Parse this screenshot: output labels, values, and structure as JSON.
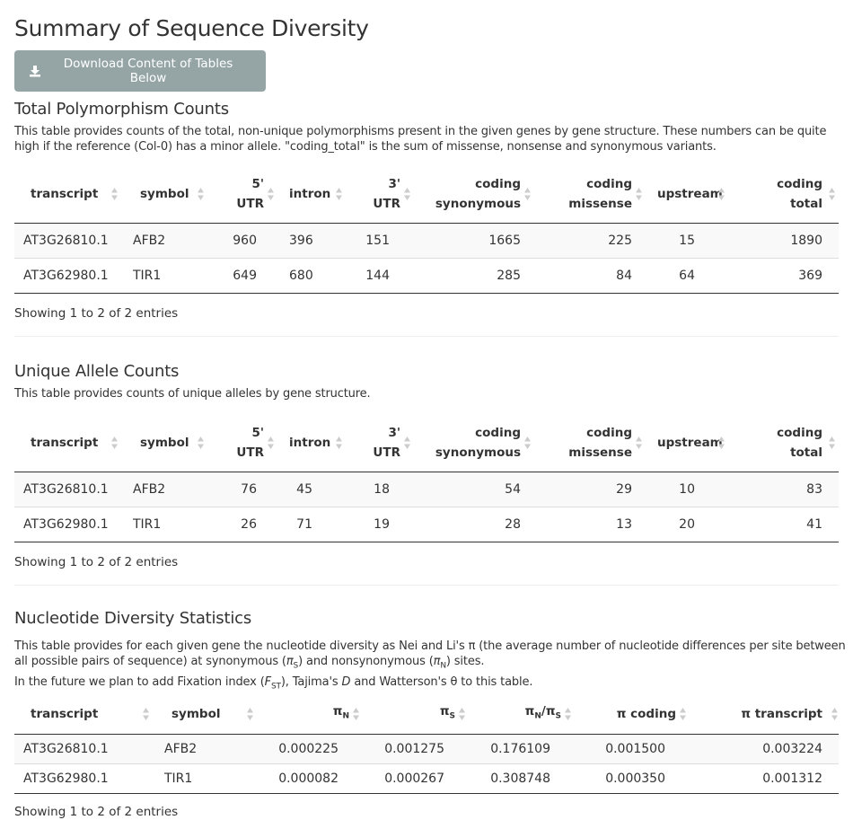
{
  "page": {
    "title": "Summary of Sequence Diversity",
    "download_label": "Download Content of Tables Below"
  },
  "colors": {
    "button_bg": "#95a5a6",
    "text": "#333333"
  },
  "icons": {
    "download": "download-icon",
    "sort": "sort-both-icon"
  },
  "total": {
    "title": "Total Polymorphism Counts",
    "desc": "This table provides counts of the total, non-unique polymorphisms present in the given genes by gene structure. These numbers can be quite high if the reference (Col-0) has a minor allele. \"coding_total\" is the sum of missense, nonsense and synonymous variants.",
    "headers": [
      {
        "l1": "transcript",
        "l2": ""
      },
      {
        "l1": "symbol",
        "l2": ""
      },
      {
        "l1": "5'",
        "l2": "UTR"
      },
      {
        "l1": "intron",
        "l2": ""
      },
      {
        "l1": "3'",
        "l2": "UTR"
      },
      {
        "l1": "coding",
        "l2": "synonymous"
      },
      {
        "l1": "coding",
        "l2": "missense"
      },
      {
        "l1": "upstream",
        "l2": ""
      },
      {
        "l1": "coding",
        "l2": "total"
      }
    ],
    "rows": [
      [
        "AT3G26810.1",
        "AFB2",
        "960",
        "396",
        "151",
        "1665",
        "225",
        "15",
        "1890"
      ],
      [
        "AT3G62980.1",
        "TIR1",
        "649",
        "680",
        "144",
        "285",
        "84",
        "64",
        "369"
      ]
    ],
    "info": "Showing 1 to 2 of 2 entries"
  },
  "unique": {
    "title": "Unique Allele Counts",
    "desc": "This table provides counts of unique alleles by gene structure.",
    "headers": [
      {
        "l1": "transcript",
        "l2": ""
      },
      {
        "l1": "symbol",
        "l2": ""
      },
      {
        "l1": "5'",
        "l2": "UTR"
      },
      {
        "l1": "intron",
        "l2": ""
      },
      {
        "l1": "3'",
        "l2": "UTR"
      },
      {
        "l1": "coding",
        "l2": "synonymous"
      },
      {
        "l1": "coding",
        "l2": "missense"
      },
      {
        "l1": "upstream",
        "l2": ""
      },
      {
        "l1": "coding",
        "l2": "total"
      }
    ],
    "rows": [
      [
        "AT3G26810.1",
        "AFB2",
        "76",
        "45",
        "18",
        "54",
        "29",
        "10",
        "83"
      ],
      [
        "AT3G62980.1",
        "TIR1",
        "26",
        "71",
        "19",
        "28",
        "13",
        "20",
        "41"
      ]
    ],
    "info": "Showing 1 to 2 of 2 entries"
  },
  "nucleotide": {
    "title": "Nucleotide Diversity Statistics",
    "desc_a": "This table provides for each given gene the nucleotide diversity as Nei and Li's π (the average number of nucleotide differences per site between all possible pairs of sequence) at synonymous (",
    "desc_b": ") and nonsynonymous (",
    "desc_c": ") sites.",
    "desc2_a": "In the future we plan to add Fixation index (",
    "desc2_b": "), Tajima's ",
    "desc2_c": " and Watterson's θ to this table.",
    "sym_pi": "π",
    "sub_s": "S",
    "sub_n": "N",
    "sym_f": "F",
    "sub_st": "ST",
    "sym_d": "D",
    "headers": {
      "transcript": "transcript",
      "symbol": "symbol",
      "pi": "π",
      "sub_n": "N",
      "sub_s": "S",
      "ratio_sep": "/",
      "pi_coding": "π coding",
      "pi_transcript": "π transcript"
    },
    "rows": [
      [
        "AT3G26810.1",
        "AFB2",
        "0.000225",
        "0.001275",
        "0.176109",
        "0.001500",
        "0.003224"
      ],
      [
        "AT3G62980.1",
        "TIR1",
        "0.000082",
        "0.000267",
        "0.308748",
        "0.000350",
        "0.001312"
      ]
    ],
    "info": "Showing 1 to 2 of 2 entries"
  }
}
